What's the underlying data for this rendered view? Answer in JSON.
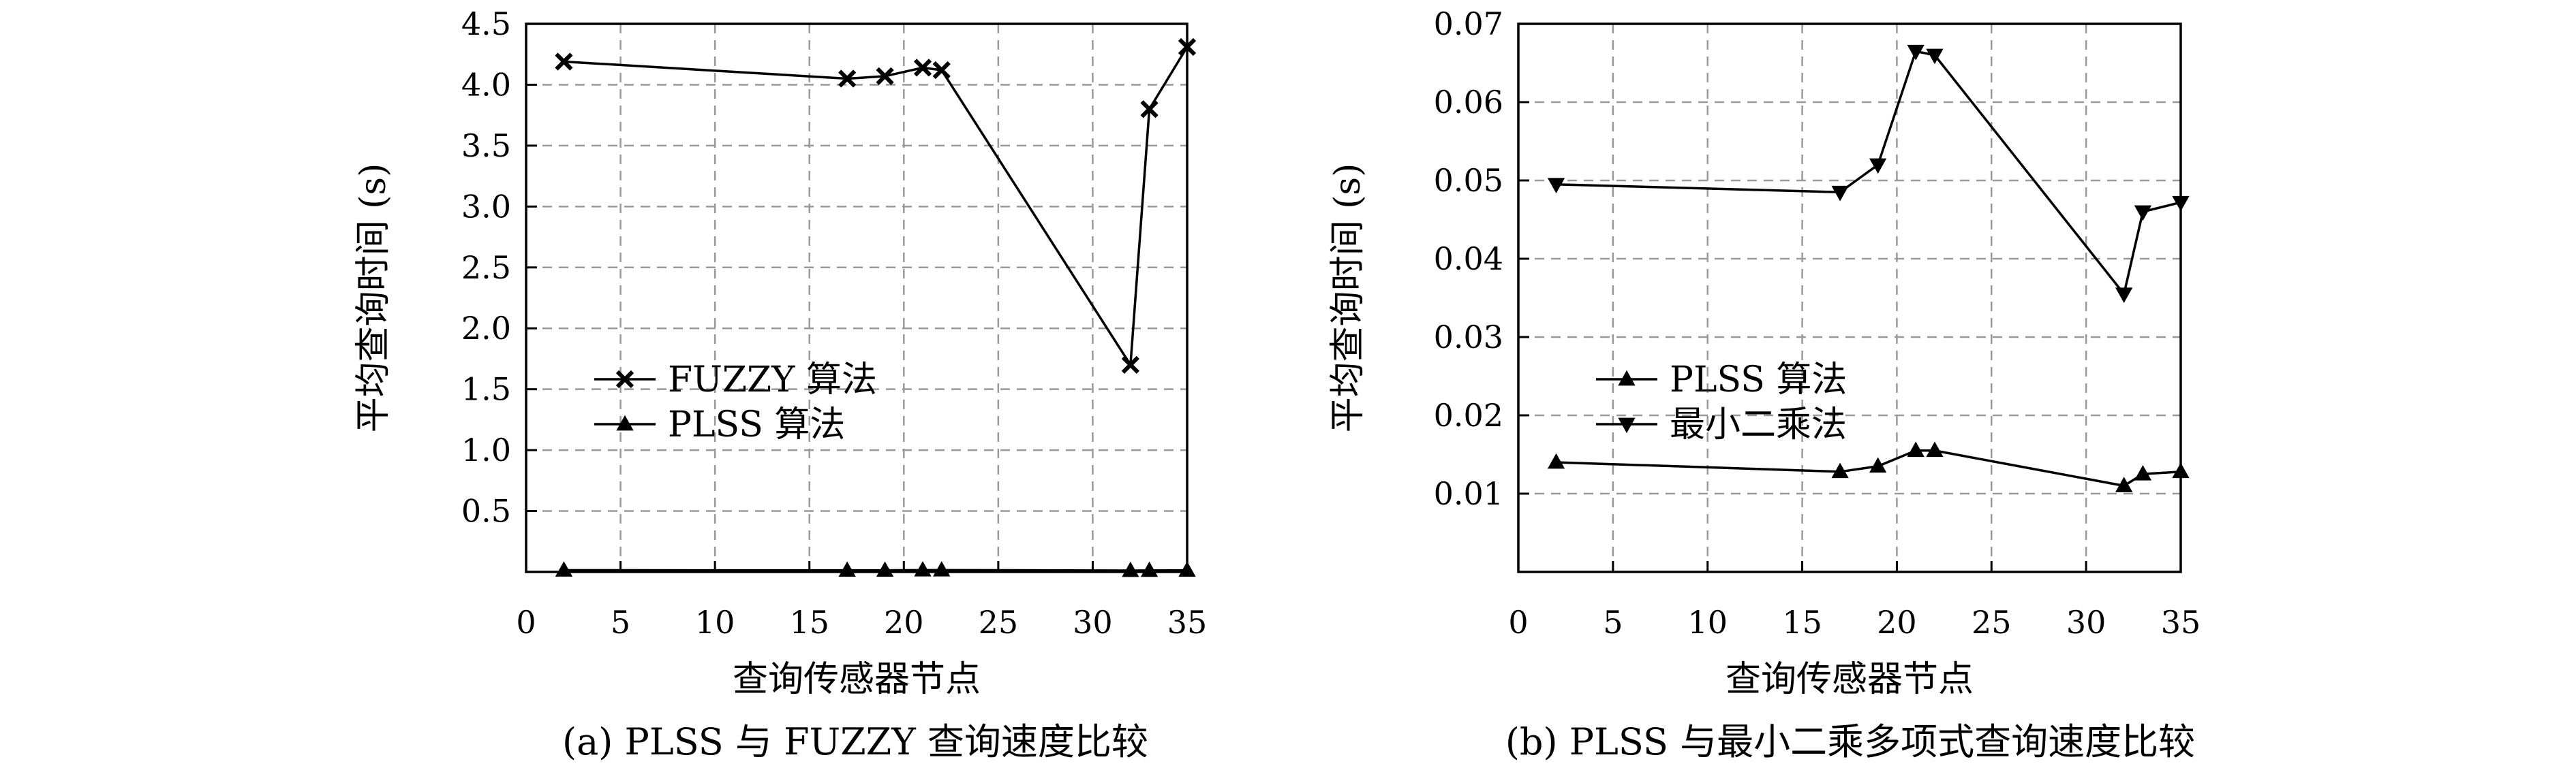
{
  "chart_data": [
    {
      "type": "line",
      "caption": "(a) PLSS 与 FUZZY 查询速度比较",
      "xlabel": "查询传感器节点",
      "ylabel": "平均查询时间 (s)",
      "xlim": [
        0,
        35
      ],
      "ylim": [
        0,
        4.5
      ],
      "x_ticks": [
        0,
        5,
        10,
        15,
        20,
        25,
        30,
        35
      ],
      "y_ticks": [
        0.5,
        1.0,
        1.5,
        2.0,
        2.5,
        3.0,
        3.5,
        4.0,
        4.5
      ],
      "y_tick_labels": [
        "0.5",
        "1.0",
        "1.5",
        "2.0",
        "2.5",
        "3.0",
        "3.5",
        "4.0",
        "4.5"
      ],
      "x_tick_labels": [
        "0",
        "5",
        "10",
        "15",
        "20",
        "25",
        "30",
        "35"
      ],
      "grid": true,
      "legend_position": "center-left",
      "series": [
        {
          "name": "FUZZY 算法",
          "marker": "x",
          "x": [
            2,
            17,
            19,
            21,
            22,
            32,
            33,
            35
          ],
          "y": [
            4.19,
            4.05,
            4.07,
            4.14,
            4.12,
            1.7,
            3.8,
            4.31
          ]
        },
        {
          "name": "PLSS 算法",
          "marker": "triangle-up",
          "x": [
            2,
            17,
            19,
            21,
            22,
            32,
            33,
            35
          ],
          "y": [
            0.014,
            0.013,
            0.013,
            0.015,
            0.015,
            0.011,
            0.012,
            0.013
          ]
        }
      ]
    },
    {
      "type": "line",
      "caption": "(b) PLSS 与最小二乘多项式查询速度比较",
      "xlabel": "查询传感器节点",
      "ylabel": "平均查询时间 (s)",
      "xlim": [
        0,
        35
      ],
      "ylim": [
        0,
        0.07
      ],
      "x_ticks": [
        0,
        5,
        10,
        15,
        20,
        25,
        30,
        35
      ],
      "y_ticks": [
        0.01,
        0.02,
        0.03,
        0.04,
        0.05,
        0.06,
        0.07
      ],
      "y_tick_labels": [
        "0.01",
        "0.02",
        "0.03",
        "0.04",
        "0.05",
        "0.06",
        "0.07"
      ],
      "x_tick_labels": [
        "0",
        "5",
        "10",
        "15",
        "20",
        "25",
        "30",
        "35"
      ],
      "grid": true,
      "legend_position": "center-left",
      "series": [
        {
          "name": "PLSS 算法",
          "marker": "triangle-up",
          "x": [
            2,
            17,
            19,
            21,
            22,
            32,
            33,
            35
          ],
          "y": [
            0.014,
            0.0128,
            0.0135,
            0.0155,
            0.0155,
            0.011,
            0.0125,
            0.0128
          ]
        },
        {
          "name": "最小二乘法",
          "marker": "triangle-down",
          "x": [
            2,
            17,
            19,
            21,
            22,
            32,
            33,
            35
          ],
          "y": [
            0.0495,
            0.0485,
            0.052,
            0.0665,
            0.066,
            0.0355,
            0.046,
            0.0472
          ]
        }
      ]
    }
  ]
}
